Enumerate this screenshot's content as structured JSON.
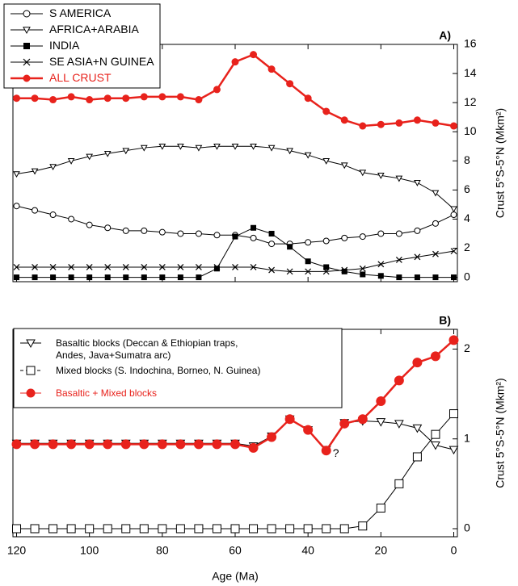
{
  "chart_data": [
    {
      "type": "line",
      "panel_label": "A)",
      "ylabel": "Crust 5°S-5°N (Mkm²)",
      "legend": "upper left",
      "xlim": [
        121,
        -1
      ],
      "xticks": [
        120,
        100,
        80,
        60,
        40,
        20,
        0
      ],
      "ylim": [
        -0.3,
        16
      ],
      "yticks": [
        0,
        2,
        4,
        6,
        8,
        10,
        12,
        14,
        16
      ],
      "x": [
        120,
        115,
        110,
        105,
        100,
        95,
        90,
        85,
        80,
        75,
        70,
        65,
        60,
        55,
        50,
        45,
        40,
        35,
        30,
        25,
        20,
        15,
        10,
        5,
        0
      ],
      "series": [
        {
          "name": "S AMERICA",
          "color": "#000000",
          "marker": "circle-open",
          "values": [
            4.9,
            4.6,
            4.3,
            4.0,
            3.6,
            3.4,
            3.2,
            3.2,
            3.1,
            3.0,
            3.0,
            2.9,
            2.9,
            2.7,
            2.3,
            2.3,
            2.4,
            2.5,
            2.7,
            2.8,
            3.0,
            3.0,
            3.2,
            3.7,
            4.3
          ]
        },
        {
          "name": "AFRICA+ARABIA",
          "color": "#000000",
          "marker": "triangle-down-open",
          "values": [
            7.1,
            7.3,
            7.6,
            8.0,
            8.3,
            8.5,
            8.7,
            8.9,
            9.0,
            9.0,
            8.9,
            9.0,
            9.0,
            9.0,
            8.9,
            8.7,
            8.4,
            8.0,
            7.7,
            7.2,
            7.0,
            6.8,
            6.5,
            5.8,
            4.7
          ]
        },
        {
          "name": "INDIA",
          "color": "#000000",
          "marker": "square-filled",
          "values": [
            0,
            0,
            0,
            0,
            0,
            0,
            0,
            0,
            0,
            0,
            0,
            0.6,
            2.8,
            3.4,
            3.0,
            2.1,
            1.1,
            0.7,
            0.4,
            0.2,
            0.1,
            0,
            0,
            0,
            0
          ]
        },
        {
          "name": "SE ASIA+N GUINEA",
          "color": "#000000",
          "marker": "x",
          "values": [
            0.7,
            0.7,
            0.7,
            0.7,
            0.7,
            0.7,
            0.7,
            0.7,
            0.7,
            0.7,
            0.7,
            0.7,
            0.7,
            0.7,
            0.5,
            0.4,
            0.4,
            0.4,
            0.5,
            0.6,
            0.9,
            1.2,
            1.4,
            1.6,
            1.8
          ]
        },
        {
          "name": "ALL CRUST",
          "color": "#e8221c",
          "marker": "circle-filled",
          "values": [
            12.3,
            12.3,
            12.2,
            12.4,
            12.2,
            12.3,
            12.3,
            12.4,
            12.4,
            12.4,
            12.2,
            12.9,
            14.8,
            15.3,
            14.3,
            13.3,
            12.3,
            11.4,
            10.8,
            10.4,
            10.5,
            10.6,
            10.8,
            10.6,
            10.4
          ]
        }
      ]
    },
    {
      "type": "line",
      "panel_label": "B)",
      "ylabel": "Crust 5°S-5°N (Mkm²)",
      "xlabel": "Age (Ma)",
      "legend": "upper left",
      "xlim": [
        121,
        -1
      ],
      "xticks": [
        120,
        100,
        80,
        60,
        40,
        20,
        0
      ],
      "ylim": [
        -0.09,
        2.22
      ],
      "yticks": [
        0,
        1,
        2
      ],
      "x": [
        120,
        115,
        110,
        105,
        100,
        95,
        90,
        85,
        80,
        75,
        70,
        65,
        60,
        55,
        50,
        45,
        40,
        35,
        30,
        25,
        20,
        15,
        10,
        5,
        0
      ],
      "series": [
        {
          "name": "Basaltic blocks (Deccan & Ethiopian traps, Andes, Java+Sumatra arc)",
          "color": "#000000",
          "marker": "triangle-down-open",
          "values": [
            0.95,
            0.95,
            0.95,
            0.95,
            0.95,
            0.95,
            0.95,
            0.95,
            0.95,
            0.95,
            0.95,
            0.95,
            0.95,
            0.92,
            1.03,
            1.22,
            1.1,
            0.88,
            1.18,
            1.2,
            1.19,
            1.17,
            1.12,
            0.93,
            0.88
          ]
        },
        {
          "name": "Mixed blocks (S. Indochina, Borneo, N. Guinea)",
          "color": "#000000",
          "marker": "square-open",
          "values": [
            0,
            0,
            0,
            0,
            0,
            0,
            0,
            0,
            0,
            0,
            0,
            0,
            0,
            0,
            0,
            0,
            0,
            0,
            0,
            0.03,
            0.23,
            0.5,
            0.8,
            1.05,
            1.28
          ]
        },
        {
          "name": "Basaltic + Mixed blocks",
          "color": "#e8221c",
          "marker": "circle-filled",
          "values": [
            0.94,
            0.94,
            0.94,
            0.94,
            0.94,
            0.94,
            0.94,
            0.94,
            0.94,
            0.94,
            0.94,
            0.94,
            0.94,
            0.9,
            1.02,
            1.22,
            1.1,
            0.87,
            1.17,
            1.22,
            1.42,
            1.65,
            1.85,
            1.92,
            2.1
          ]
        }
      ],
      "annotations": [
        {
          "text": "?",
          "x": 35,
          "y": 0.87
        }
      ]
    }
  ]
}
